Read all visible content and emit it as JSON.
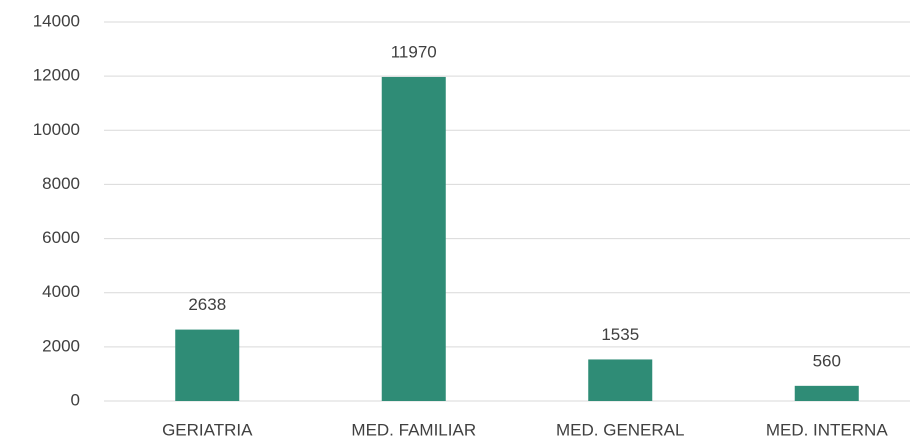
{
  "chart_data": {
    "type": "bar",
    "categories": [
      "GERIATRIA",
      "MED. FAMILIAR",
      "MED. GENERAL",
      "MED. INTERNA"
    ],
    "values": [
      2638,
      11970,
      1535,
      560
    ],
    "color": "#2f8c76",
    "ylim": [
      0,
      14000
    ],
    "yticks": [
      0,
      2000,
      4000,
      6000,
      8000,
      10000,
      12000,
      14000
    ],
    "grid": true
  }
}
